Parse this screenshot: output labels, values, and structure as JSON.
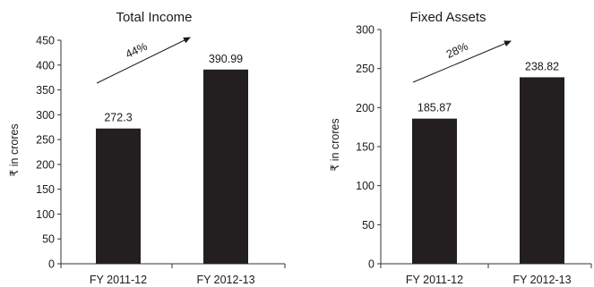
{
  "colors": {
    "bar": "#231f20",
    "axis": "#333333",
    "text": "#1a1a1a"
  },
  "chart_data": [
    {
      "type": "bar",
      "title": "Total Income",
      "ylabel": "₹ in crores",
      "categories": [
        "FY 2011-12",
        "FY 2012-13"
      ],
      "values": [
        272.3,
        390.99
      ],
      "value_labels": [
        "272.3",
        "390.99"
      ],
      "ylim": [
        0,
        450
      ],
      "yticks": [
        0,
        50,
        100,
        150,
        200,
        250,
        300,
        350,
        400,
        450
      ],
      "growth_label": "44%",
      "grid": false,
      "legend": "none"
    },
    {
      "type": "bar",
      "title": "Fixed Assets",
      "ylabel": "₹ in crores",
      "categories": [
        "FY 2011-12",
        "FY 2012-13"
      ],
      "values": [
        185.87,
        238.82
      ],
      "value_labels": [
        "185.87",
        "238.82"
      ],
      "ylim": [
        0,
        300
      ],
      "yticks": [
        0,
        50,
        100,
        150,
        200,
        250,
        300
      ],
      "growth_label": "28%",
      "grid": false,
      "legend": "none"
    }
  ]
}
